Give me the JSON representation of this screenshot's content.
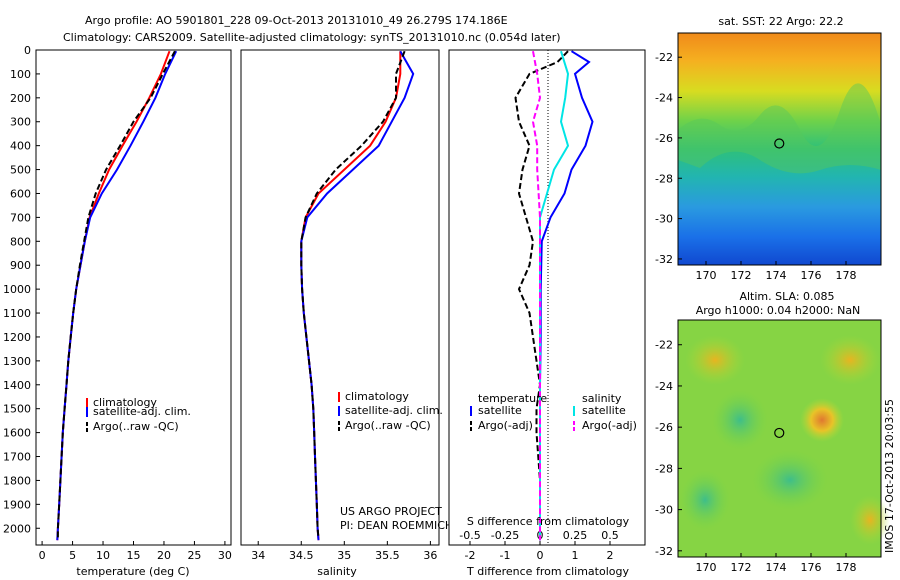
{
  "header": {
    "title_line1": "Argo profile: AO 5901801_228 09-Oct-2013 20131010_49 26.279S 174.186E",
    "title_line2": "Climatology: CARS2009. Satellite-adjusted climatology: synTS_20131010.nc (0.054d later)"
  },
  "colors": {
    "climatology": "#ff0000",
    "satellite": "#0000ff",
    "argo": "#000000",
    "salinity_satellite": "#00e5e5",
    "salinity_argo": "#ff00ff"
  },
  "chart_data": [
    {
      "type": "line",
      "id": "temperature",
      "xlabel": "temperature (deg C)",
      "ylabel": "",
      "xlim": [
        -1,
        31
      ],
      "ylim": [
        2070,
        0
      ],
      "xticks": [
        "0",
        "5",
        "10",
        "15",
        "20",
        "25",
        "30"
      ],
      "yticks": [
        "0",
        "100",
        "200",
        "300",
        "400",
        "500",
        "600",
        "700",
        "800",
        "900",
        "1000",
        "1100",
        "1200",
        "1300",
        "1400",
        "1500",
        "1600",
        "1700",
        "1800",
        "1900",
        "2000"
      ],
      "legend": [
        "climatology",
        "satellite-adj. clim.",
        "Argo(..raw -QC)"
      ],
      "series": [
        {
          "name": "climatology",
          "depth": [
            5,
            100,
            200,
            300,
            400,
            500,
            600,
            700,
            800,
            900,
            1000,
            1100,
            1200,
            1300,
            1400,
            1500,
            1600,
            1700,
            1800,
            1900,
            2000,
            2050
          ],
          "values": [
            20.9,
            19.5,
            17.6,
            15.5,
            13.2,
            11.0,
            9.3,
            7.8,
            7.0,
            6.3,
            5.6,
            5.1,
            4.7,
            4.3,
            4.0,
            3.7,
            3.4,
            3.2,
            3.0,
            2.8,
            2.6,
            2.5
          ]
        },
        {
          "name": "satellite-adj. clim.",
          "depth": [
            5,
            100,
            200,
            300,
            400,
            500,
            600,
            700,
            800,
            900,
            1000,
            1100,
            1200,
            1300,
            1400,
            1500,
            1600,
            1700,
            1800,
            1900,
            2000,
            2050
          ],
          "values": [
            22.0,
            20.2,
            18.6,
            16.6,
            14.5,
            12.3,
            9.8,
            7.9,
            7.0,
            6.3,
            5.6,
            5.1,
            4.7,
            4.3,
            4.0,
            3.7,
            3.4,
            3.2,
            3.0,
            2.8,
            2.6,
            2.5
          ]
        },
        {
          "name": "Argo(..raw -QC)",
          "depth": [
            5,
            100,
            200,
            300,
            400,
            500,
            600,
            700,
            800,
            900,
            1000,
            1100,
            1200,
            1300,
            1400,
            1500,
            1600,
            1700,
            1800,
            1900,
            2000,
            2040
          ],
          "values": [
            21.8,
            19.8,
            17.8,
            15.0,
            12.8,
            10.5,
            8.8,
            7.6,
            6.9,
            6.2,
            5.6,
            5.1,
            4.7,
            4.3,
            4.0,
            3.7,
            3.4,
            3.2,
            3.0,
            2.8,
            2.6,
            2.6
          ]
        }
      ]
    },
    {
      "type": "line",
      "id": "salinity",
      "xlabel": "salinity",
      "ylabel": "",
      "xlim": [
        33.8,
        36.1
      ],
      "ylim": [
        2070,
        0
      ],
      "xticks": [
        "34",
        "34.5",
        "35",
        "35.5",
        "36"
      ],
      "legend": [
        "climatology",
        "satellite-adj. clim.",
        "Argo(..raw -QC)"
      ],
      "annotation": [
        "US ARGO PROJECT",
        "PI: DEAN ROEMMICH"
      ],
      "series": [
        {
          "name": "climatology",
          "depth": [
            5,
            100,
            200,
            300,
            400,
            500,
            600,
            700,
            800,
            900,
            1000,
            1100,
            1200,
            1300,
            1400,
            1500,
            1600,
            1700,
            1800,
            1900,
            2000,
            2050
          ],
          "values": [
            35.65,
            35.65,
            35.6,
            35.48,
            35.3,
            35.0,
            34.7,
            34.55,
            34.5,
            34.5,
            34.51,
            34.53,
            34.56,
            34.59,
            34.62,
            34.64,
            34.65,
            34.66,
            34.67,
            34.68,
            34.69,
            34.7
          ]
        },
        {
          "name": "satellite-adj. clim.",
          "depth": [
            5,
            100,
            200,
            300,
            400,
            500,
            600,
            700,
            800,
            900,
            1000,
            1100,
            1200,
            1300,
            1400,
            1500,
            1600,
            1700,
            1800,
            1900,
            2000,
            2050
          ],
          "values": [
            35.65,
            35.8,
            35.7,
            35.55,
            35.4,
            35.1,
            34.8,
            34.57,
            34.5,
            34.5,
            34.51,
            34.53,
            34.56,
            34.59,
            34.62,
            34.64,
            34.65,
            34.66,
            34.67,
            34.68,
            34.69,
            34.7
          ]
        },
        {
          "name": "Argo(..raw -QC)",
          "depth": [
            5,
            100,
            200,
            300,
            400,
            500,
            600,
            700,
            800,
            900,
            1000,
            1100,
            1200,
            1300,
            1400,
            1500,
            1600,
            1700,
            1800,
            1900,
            2000,
            2040
          ],
          "values": [
            35.7,
            35.6,
            35.6,
            35.45,
            35.2,
            34.9,
            34.68,
            34.55,
            34.5,
            34.5,
            34.51,
            34.53,
            34.56,
            34.59,
            34.62,
            34.64,
            34.65,
            34.66,
            34.67,
            34.68,
            34.69,
            34.7
          ]
        }
      ]
    },
    {
      "type": "line",
      "id": "difference",
      "xlabel": "T difference from climatology",
      "xlabel_top": "S difference from climatology",
      "ylabel": "",
      "xlim": [
        -2.6,
        3.0
      ],
      "ylim": [
        2070,
        0
      ],
      "xticks": [
        "-2",
        "-1",
        "0",
        "1",
        "2"
      ],
      "xticks_top": [
        "-0.5",
        "-0.25",
        "0",
        "0.25",
        "0.5"
      ],
      "legend_left_title": "temperature",
      "legend_left": [
        "satellite",
        "Argo(-adj)"
      ],
      "legend_right_title": "salinity",
      "legend_right": [
        "satellite",
        "Argo(-adj)"
      ],
      "series": [
        {
          "name": "temperature satellite",
          "depth": [
            5,
            50,
            100,
            200,
            300,
            400,
            500,
            600,
            700,
            800,
            1000,
            1200,
            1400,
            1600,
            1800,
            2000,
            2050
          ],
          "values": [
            0.9,
            1.4,
            1.0,
            1.2,
            1.5,
            1.3,
            0.9,
            0.7,
            0.3,
            0.05,
            0.02,
            0.02,
            0.0,
            0.0,
            0.0,
            0.0,
            0.0
          ]
        },
        {
          "name": "temperature Argo(-adj)",
          "depth": [
            5,
            50,
            100,
            200,
            300,
            400,
            500,
            600,
            700,
            800,
            900,
            1000,
            1100,
            1200,
            1300,
            1400,
            1500,
            1600,
            1800,
            2000,
            2050
          ],
          "values": [
            0.8,
            0.5,
            -0.3,
            -0.7,
            -0.6,
            -0.3,
            -0.5,
            -0.6,
            -0.4,
            -0.2,
            -0.3,
            -0.6,
            -0.3,
            -0.2,
            -0.1,
            0.0,
            -0.1,
            -0.1,
            0.0,
            0.0,
            0.0
          ]
        },
        {
          "name": "salinity satellite",
          "depth": [
            5,
            100,
            200,
            300,
            400,
            500,
            600,
            700,
            800,
            1000,
            1200,
            1400,
            1600,
            1800,
            2000,
            2050
          ],
          "values": [
            0.15,
            0.2,
            0.18,
            0.15,
            0.2,
            0.1,
            0.05,
            0.0,
            0.0,
            0.0,
            0.0,
            0.0,
            0.0,
            0.0,
            0.0,
            0.0
          ]
        },
        {
          "name": "salinity Argo(-adj)",
          "depth": [
            5,
            100,
            200,
            300,
            400,
            500,
            600,
            700,
            800,
            1000,
            1200,
            1400,
            1600,
            1800,
            2000,
            2050
          ],
          "values": [
            -0.05,
            -0.02,
            0.0,
            -0.05,
            -0.02,
            -0.02,
            -0.01,
            0.0,
            0.0,
            0.0,
            0.0,
            0.0,
            0.0,
            0.0,
            0.0,
            0.0
          ]
        }
      ]
    },
    {
      "type": "heatmap",
      "id": "sst_map",
      "title": "sat. SST: 22 Argo: 22.2",
      "xlim": [
        168.4,
        180
      ],
      "ylim": [
        -32.3,
        -20.8
      ],
      "xticks": [
        "170",
        "172",
        "174",
        "176",
        "178"
      ],
      "yticks": [
        "-22",
        "-24",
        "-26",
        "-28",
        "-30",
        "-32"
      ],
      "argo_position": {
        "lon": 174.186,
        "lat": -26.279
      }
    },
    {
      "type": "heatmap",
      "id": "sla_map",
      "title_line1": "Altim. SLA: 0.085",
      "title_line2": "Argo h1000: 0.04 h2000: NaN",
      "xlim": [
        168.4,
        180
      ],
      "ylim": [
        -32.3,
        -20.8
      ],
      "xticks": [
        "170",
        "172",
        "174",
        "176",
        "178"
      ],
      "yticks": [
        "-22",
        "-24",
        "-26",
        "-28",
        "-30",
        "-32"
      ],
      "argo_position": {
        "lon": 174.186,
        "lat": -26.279
      }
    }
  ],
  "side_stamp": "IMOS 17-Oct-2013 20:03:55"
}
